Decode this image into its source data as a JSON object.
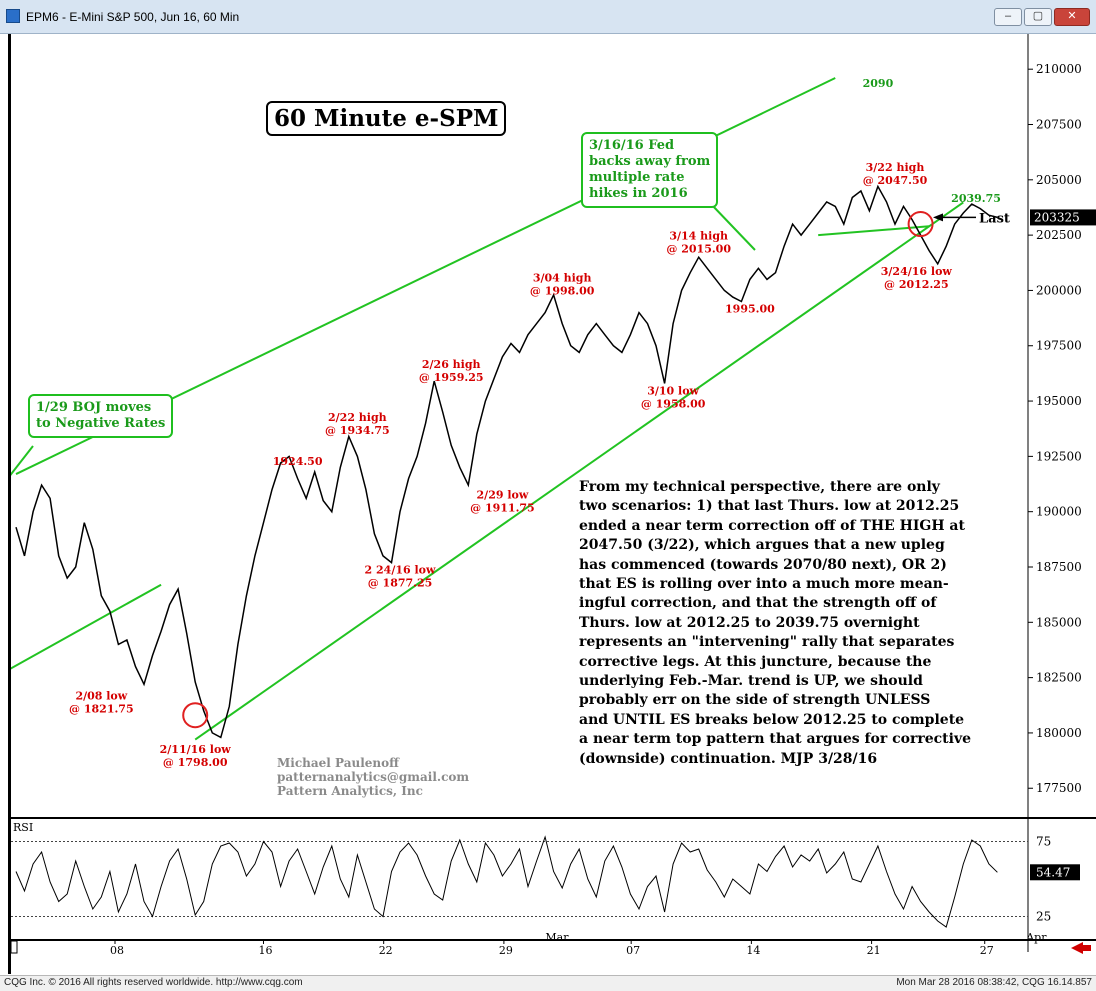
{
  "window": {
    "title": "EPM6 - E-Mini S&P 500, Jun 16, 60 Min",
    "buttons": {
      "minimize": "–",
      "maximize": "▢",
      "close": "✕"
    }
  },
  "statusbar": {
    "left": "CQG Inc. © 2016 All rights reserved worldwide. http://www.cqg.com",
    "right": "Mon Mar 28 2016 08:38:42, CQG 16.14.857"
  },
  "title_box": "60 Minute e-SPM",
  "callouts": {
    "boj": [
      "1/29 BOJ moves",
      "to Negative Rates"
    ],
    "fed": [
      "3/16/16 Fed",
      "backs away from",
      "multiple rate",
      "hikes in 2016"
    ]
  },
  "credits": [
    "Michael Paulenoff",
    "patternanalytics@gmail.com",
    "Pattern Analytics, Inc"
  ],
  "commentary": [
    "From my technical perspective, there are only",
    "two scenarios: 1) that last Thurs. low at 2012.25",
    "ended a near term correction off of THE HIGH at",
    "2047.50 (3/22), which argues that a new upleg",
    "has commenced (towards 2070/80 next), OR 2)",
    "that ES is rolling over into a much more mean-",
    "ingful correction, and that the strength off of",
    "Thurs. low at 2012.25 to 2039.75 overnight",
    "represents an \"intervening\" rally that separates",
    "corrective legs. At this juncture, because the",
    "underlying Feb.-Mar. trend is UP, we should",
    "probably err on the side of strength UNLESS",
    "and UNTIL ES breaks below 2012.25 to complete",
    "a near term top pattern that argues for corrective",
    "(downside) continuation.  MJP 3/28/16"
  ],
  "colors": {
    "price": "#000000",
    "channel": "#22c322",
    "annotation": "#d40000",
    "rsi": "#000000",
    "rsi_level": "#444444"
  },
  "chart_data": [
    {
      "type": "line",
      "title": "",
      "x_ticks": [
        "08",
        "16",
        "22",
        "29",
        "07",
        "14",
        "21",
        "27"
      ],
      "x_month_labels": [
        "Mar",
        "Apr"
      ],
      "y_ticks": [
        "177500",
        "180000",
        "182500",
        "185000",
        "187500",
        "190000",
        "192500",
        "195000",
        "197500",
        "200000",
        "202500",
        "205000",
        "207500",
        "210000"
      ],
      "ylim": [
        1762,
        2115
      ],
      "last_value": "203325",
      "last_label": "Last",
      "series": [
        {
          "x": [
            0,
            1,
            2,
            3,
            4,
            5,
            6,
            7,
            8,
            9,
            10,
            11,
            12,
            13,
            14,
            15,
            16,
            17,
            18,
            19,
            20,
            21,
            22,
            23,
            24,
            25,
            26,
            27,
            28,
            29,
            30,
            31,
            32,
            33,
            34,
            35,
            36,
            37,
            38,
            39,
            40,
            41,
            42,
            43,
            44,
            45,
            46,
            47,
            48,
            49,
            50,
            51,
            52,
            53,
            54,
            55,
            56,
            57,
            58,
            59,
            60,
            61,
            62,
            63,
            64,
            65,
            66,
            67,
            68,
            69,
            70,
            71,
            72,
            73,
            74,
            75,
            76,
            77,
            78,
            79,
            80,
            81,
            82,
            83,
            84,
            85,
            86,
            87,
            88,
            89,
            90,
            91,
            92,
            93,
            94,
            95,
            96,
            97,
            98,
            99,
            100,
            101,
            102,
            103,
            104,
            105,
            106,
            107,
            108,
            109,
            110,
            111,
            112,
            113,
            114,
            115
          ],
          "values": [
            1893,
            1880,
            1900,
            1912,
            1906,
            1880,
            1870,
            1875,
            1895,
            1883,
            1862,
            1855,
            1840,
            1842,
            1830,
            1822,
            1835,
            1846,
            1858,
            1865,
            1845,
            1823,
            1810,
            1800,
            1798,
            1812,
            1840,
            1862,
            1880,
            1895,
            1910,
            1922,
            1925,
            1915,
            1906,
            1918,
            1905,
            1900,
            1920,
            1934,
            1925,
            1910,
            1890,
            1880,
            1877,
            1900,
            1915,
            1925,
            1940,
            1959,
            1945,
            1930,
            1920,
            1912,
            1935,
            1950,
            1960,
            1970,
            1976,
            1972,
            1980,
            1985,
            1990,
            1998,
            1985,
            1975,
            1972,
            1980,
            1985,
            1980,
            1975,
            1972,
            1980,
            1990,
            1985,
            1975,
            1958,
            1985,
            2000,
            2008,
            2015,
            2010,
            2005,
            2000,
            1997,
            1995,
            2005,
            2010,
            2005,
            2008,
            2020,
            2030,
            2025,
            2030,
            2035,
            2040,
            2038,
            2030,
            2042,
            2045,
            2036,
            2047,
            2040,
            2030,
            2038,
            2032,
            2025,
            2018,
            2012,
            2020,
            2030,
            2035,
            2039,
            2037,
            2034,
            2033
          ]
        }
      ],
      "channel": {
        "upper": {
          "x": [
            0,
            96
          ],
          "values": [
            1917,
            2096
          ]
        },
        "middle": {
          "x": [
            -3,
            17
          ],
          "values": [
            1824,
            1867
          ]
        },
        "lower": {
          "x": [
            21,
            111
          ],
          "values": [
            1797,
            2039.75
          ]
        }
      },
      "annotations": [
        {
          "lines": [
            "2090"
          ],
          "x": 101,
          "y": 2092,
          "color": "green"
        },
        {
          "lines": [
            "2039.75"
          ],
          "x": 112.5,
          "y": 2040,
          "color": "green"
        },
        {
          "lines": [
            "2/08 low",
            "@ 1821.75"
          ],
          "x": 10,
          "y": 1815,
          "color": "red"
        },
        {
          "lines": [
            "2/11/16 low",
            "@ 1798.00"
          ],
          "x": 21,
          "y": 1791,
          "color": "red"
        },
        {
          "lines": [
            "1924.50"
          ],
          "x": 33,
          "y": 1921,
          "color": "red"
        },
        {
          "lines": [
            "2/22 high",
            "@ 1934.75"
          ],
          "x": 40,
          "y": 1941,
          "color": "red"
        },
        {
          "lines": [
            "2 24/16 low",
            "@ 1877.25"
          ],
          "x": 45,
          "y": 1872,
          "color": "red"
        },
        {
          "lines": [
            "2/26 high",
            "@ 1959.25"
          ],
          "x": 51,
          "y": 1965,
          "color": "red"
        },
        {
          "lines": [
            "2/29 low",
            "@ 1911.75"
          ],
          "x": 57,
          "y": 1906,
          "color": "red"
        },
        {
          "lines": [
            "3/04 high",
            "@ 1998.00"
          ],
          "x": 64,
          "y": 2004,
          "color": "red"
        },
        {
          "lines": [
            "3/10 low",
            "@ 1958.00"
          ],
          "x": 77,
          "y": 1953,
          "color": "red"
        },
        {
          "lines": [
            "3/14 high",
            "@ 2015.00"
          ],
          "x": 80,
          "y": 2023,
          "color": "red"
        },
        {
          "lines": [
            "1995.00"
          ],
          "x": 86,
          "y": 1990,
          "color": "red"
        },
        {
          "lines": [
            "3/22 high",
            "@ 2047.50"
          ],
          "x": 103,
          "y": 2054,
          "color": "red"
        },
        {
          "lines": [
            "3/24/16 low",
            "@ 2012.25"
          ],
          "x": 105.5,
          "y": 2007,
          "color": "red"
        }
      ],
      "highlight_circles": [
        {
          "x": 21,
          "y": 1808
        },
        {
          "x": 106,
          "y": 2030
        }
      ]
    },
    {
      "type": "line",
      "title": "RSI",
      "ylim": [
        10,
        90
      ],
      "y_ticks": [
        "25",
        "75"
      ],
      "levels": [
        25,
        75
      ],
      "last_value": "54.47",
      "series": [
        {
          "x": [
            0,
            1,
            2,
            3,
            4,
            5,
            6,
            7,
            8,
            9,
            10,
            11,
            12,
            13,
            14,
            15,
            16,
            17,
            18,
            19,
            20,
            21,
            22,
            23,
            24,
            25,
            26,
            27,
            28,
            29,
            30,
            31,
            32,
            33,
            34,
            35,
            36,
            37,
            38,
            39,
            40,
            41,
            42,
            43,
            44,
            45,
            46,
            47,
            48,
            49,
            50,
            51,
            52,
            53,
            54,
            55,
            56,
            57,
            58,
            59,
            60,
            61,
            62,
            63,
            64,
            65,
            66,
            67,
            68,
            69,
            70,
            71,
            72,
            73,
            74,
            75,
            76,
            77,
            78,
            79,
            80,
            81,
            82,
            83,
            84,
            85,
            86,
            87,
            88,
            89,
            90,
            91,
            92,
            93,
            94,
            95,
            96,
            97,
            98,
            99,
            100,
            101,
            102,
            103,
            104,
            105,
            106,
            107,
            108,
            109,
            110,
            111,
            112,
            113,
            114,
            115
          ],
          "values": [
            55,
            42,
            60,
            68,
            48,
            35,
            40,
            62,
            45,
            30,
            38,
            55,
            28,
            40,
            60,
            35,
            25,
            45,
            62,
            70,
            50,
            26,
            35,
            60,
            72,
            74,
            68,
            52,
            60,
            75,
            68,
            45,
            62,
            70,
            55,
            40,
            58,
            72,
            50,
            38,
            66,
            48,
            30,
            25,
            55,
            68,
            74,
            66,
            52,
            40,
            36,
            62,
            76,
            60,
            48,
            74,
            66,
            52,
            60,
            70,
            45,
            62,
            78,
            55,
            44,
            60,
            70,
            50,
            38,
            62,
            72,
            58,
            40,
            30,
            45,
            52,
            28,
            60,
            74,
            68,
            70,
            56,
            48,
            38,
            50,
            45,
            40,
            60,
            55,
            65,
            72,
            58,
            66,
            62,
            70,
            54,
            60,
            68,
            50,
            48,
            60,
            72,
            55,
            40,
            30,
            45,
            35,
            28,
            22,
            18,
            38,
            60,
            76,
            72,
            60,
            54.47
          ]
        }
      ]
    }
  ]
}
